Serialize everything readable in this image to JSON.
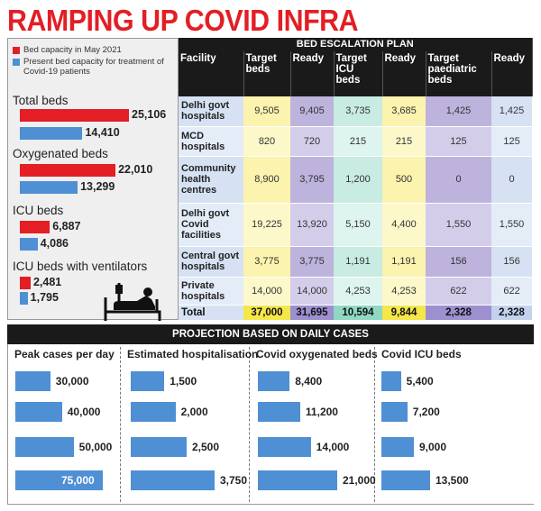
{
  "title": "RAMPING UP COVID INFRA",
  "colors": {
    "red": "#e31e24",
    "blue": "#4f8fd4"
  },
  "chart_data": [
    {
      "type": "bar",
      "orientation": "horizontal",
      "legend": [
        {
          "label": "Bed capacity in May 2021",
          "color": "#e31e24"
        },
        {
          "label": "Present bed capacity for treatment of Covid-19 patients",
          "color": "#4f8fd4"
        }
      ],
      "categories": [
        "Total beds",
        "Oxygenated beds",
        "ICU beds",
        "ICU beds with ventilators"
      ],
      "series": [
        {
          "name": "Bed capacity in May 2021",
          "values": [
            25106,
            22010,
            6887,
            2481
          ],
          "labels": [
            "25,106",
            "22,010",
            "6,887",
            "2,481"
          ]
        },
        {
          "name": "Present bed capacity for treatment of Covid-19 patients",
          "values": [
            14410,
            13299,
            4086,
            1795
          ],
          "labels": [
            "14,410",
            "13,299",
            "4,086",
            "1,795"
          ]
        }
      ]
    },
    {
      "type": "table",
      "title": "BED ESCALATION PLAN",
      "columns": [
        "Facility",
        "Target beds",
        "Ready",
        "Target ICU beds",
        "Ready",
        "Target paediatric beds",
        "Ready"
      ],
      "rows": [
        [
          "Delhi govt hospitals",
          "9,505",
          "9,405",
          "3,735",
          "3,685",
          "1,425",
          "1,425"
        ],
        [
          "MCD hospitals",
          "820",
          "720",
          "215",
          "215",
          "125",
          "125"
        ],
        [
          "Community health centres",
          "8,900",
          "3,795",
          "1,200",
          "500",
          "0",
          "0"
        ],
        [
          "Delhi govt Covid facilities",
          "19,225",
          "13,920",
          "5,150",
          "4,400",
          "1,550",
          "1,550"
        ],
        [
          "Central govt hospitals",
          "3,775",
          "3,775",
          "1,191",
          "1,191",
          "156",
          "156"
        ],
        [
          "Private hospitals",
          "14,000",
          "14,000",
          "4,253",
          "4,253",
          "622",
          "622"
        ],
        [
          "Total",
          "37,000",
          "31,695",
          "10,594",
          "9,844",
          "2,328",
          "2,328"
        ]
      ]
    },
    {
      "type": "bar",
      "orientation": "horizontal",
      "title": "PROJECTION BASED ON DAILY CASES",
      "panels": [
        {
          "title": "Peak cases per day",
          "values": [
            30000,
            40000,
            50000,
            75000
          ],
          "labels": [
            "30,000",
            "40,000",
            "50,000",
            "75,000"
          ]
        },
        {
          "title": "Estimated hospitalisation",
          "values": [
            1500,
            2000,
            2500,
            3750
          ],
          "labels": [
            "1,500",
            "2,000",
            "2,500",
            "3,750"
          ]
        },
        {
          "title": "Covid oxygenated beds",
          "values": [
            8400,
            11200,
            14000,
            21000
          ],
          "labels": [
            "8,400",
            "11,200",
            "14,000",
            "21,000"
          ]
        },
        {
          "title": "Covid ICU beds",
          "values": [
            5400,
            7200,
            9000,
            13500
          ],
          "labels": [
            "5,400",
            "7,200",
            "9,000",
            "13,500"
          ]
        }
      ]
    }
  ]
}
